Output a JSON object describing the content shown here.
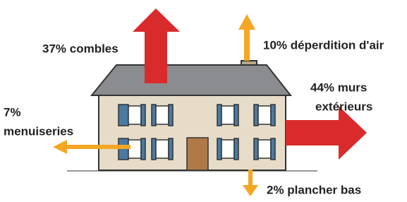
{
  "losses": {
    "roof": "37% combles",
    "air": "10% déperdition d'air",
    "walls": [
      "44% murs",
      "extérieurs"
    ],
    "windows": [
      "7%",
      "menuiseries"
    ],
    "floor": "2% plancher bas"
  }
}
